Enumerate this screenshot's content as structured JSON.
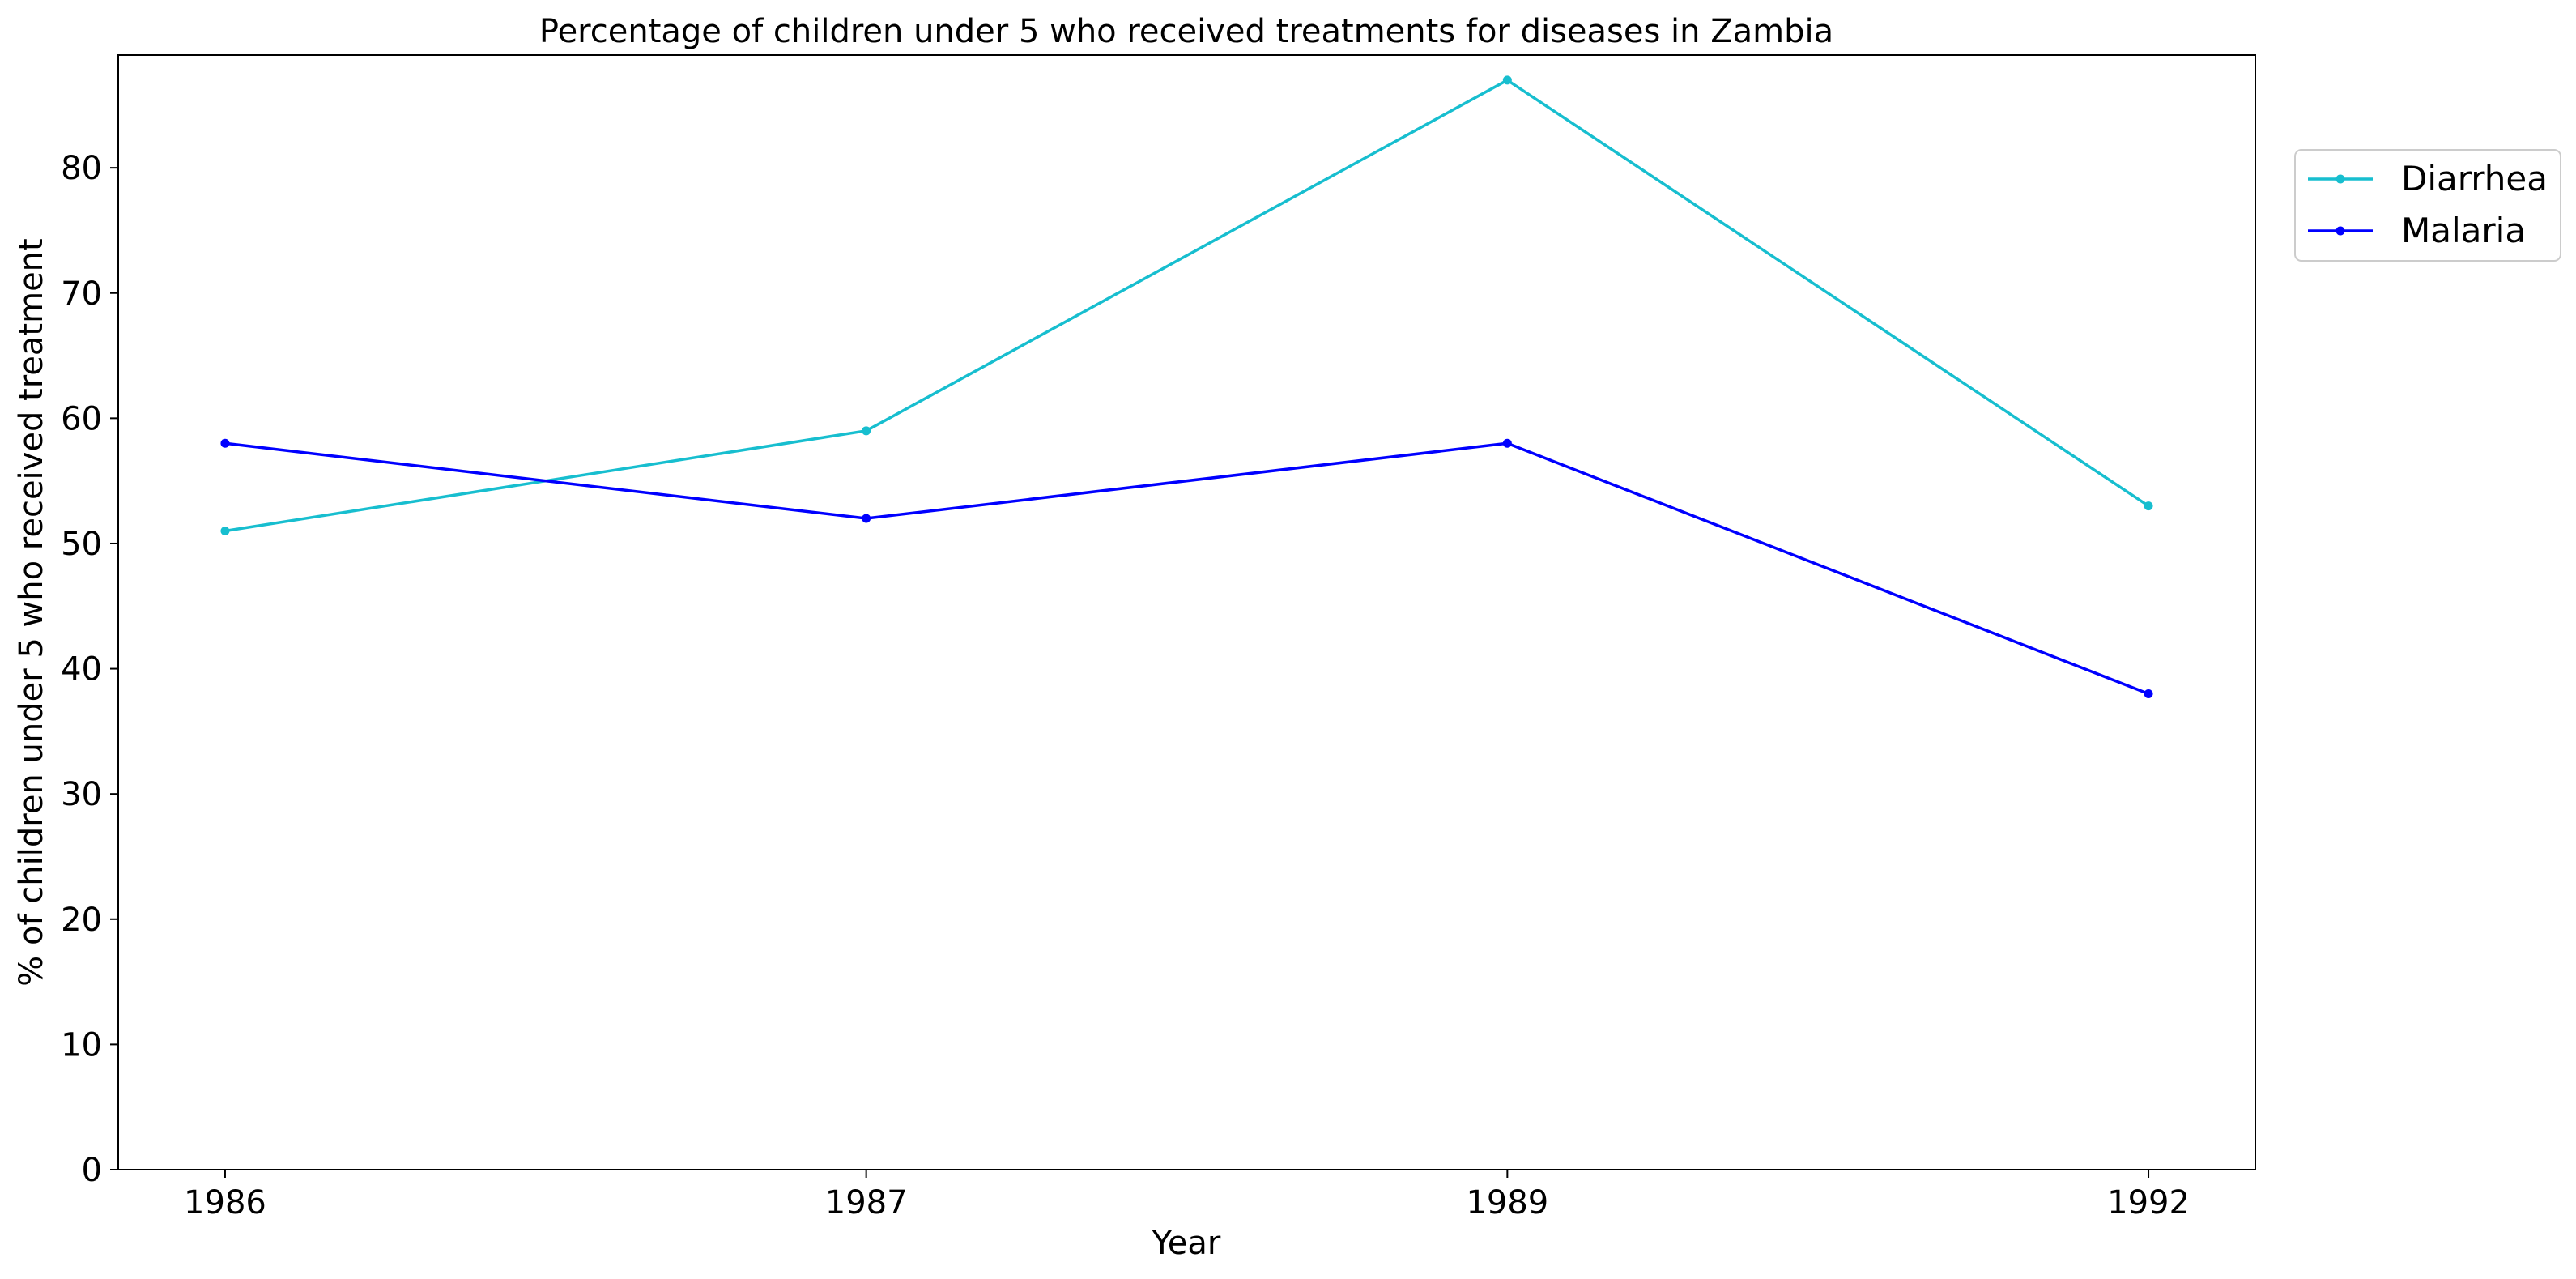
{
  "chart_data": {
    "type": "line",
    "title": "Percentage of children under 5 who received treatments for diseases in Zambia",
    "xlabel": "Year",
    "ylabel": "% of children under 5 who received treatment",
    "categories": [
      "1986",
      "1987",
      "1989",
      "1992"
    ],
    "ylim": [
      0,
      89
    ],
    "yticks": [
      0,
      10,
      20,
      30,
      40,
      50,
      60,
      70,
      80
    ],
    "grid": false,
    "legend_position": "outside top-right",
    "series": [
      {
        "name": "Diarrhea",
        "color": "#17becf",
        "values": [
          51,
          59,
          87,
          53
        ]
      },
      {
        "name": "Malaria",
        "color": "#0000ff",
        "values": [
          58,
          52,
          58,
          38
        ]
      }
    ]
  }
}
